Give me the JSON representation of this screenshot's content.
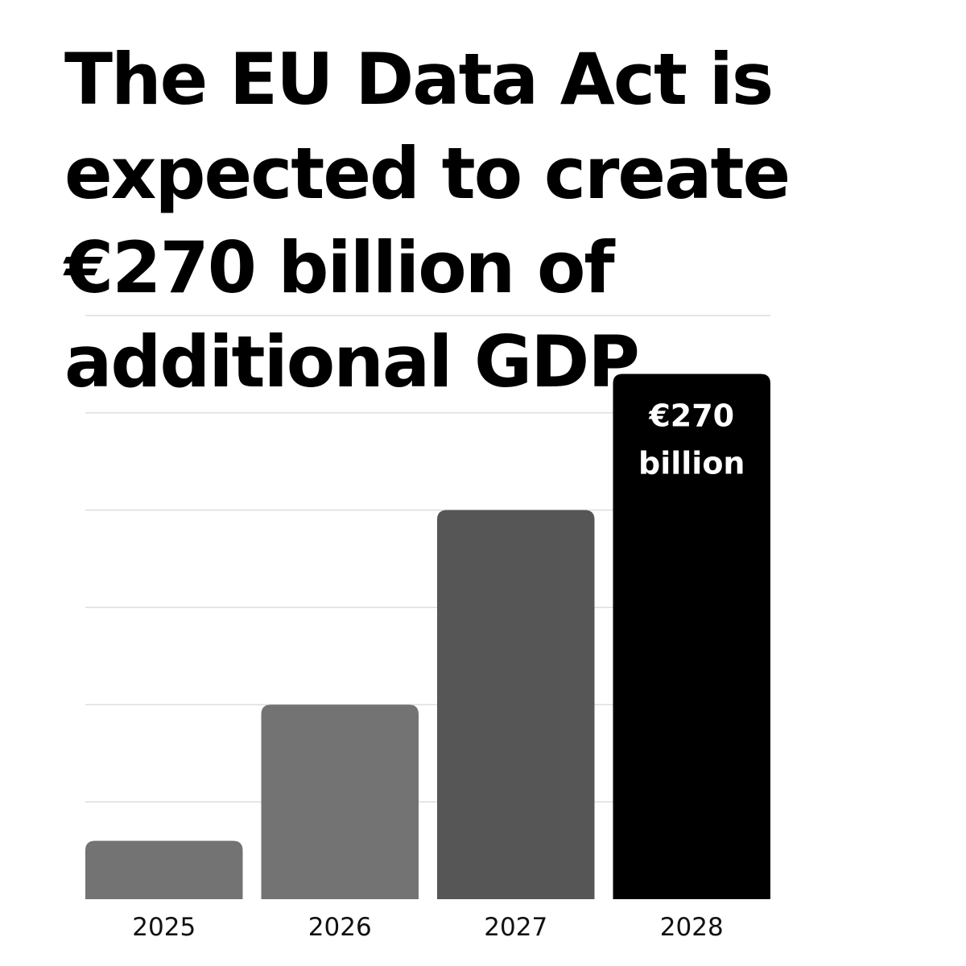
{
  "title": "The EU Data Act is expected to create €270 billion of additional GDP",
  "chart_data": {
    "type": "bar",
    "title": "The EU Data Act is expected to create €270 billion of additional GDP",
    "xlabel": "",
    "ylabel": "",
    "categories": [
      "2025",
      "2026",
      "2027",
      "2028"
    ],
    "values": [
      30,
      100,
      200,
      270
    ],
    "ylim": [
      0,
      300
    ],
    "grid": true,
    "legend": "none",
    "colors": [
      "#737373",
      "#737373",
      "#565656",
      "#000000"
    ],
    "annotations": [
      {
        "category": "2028",
        "lines": [
          "€270",
          "billion"
        ]
      }
    ]
  }
}
